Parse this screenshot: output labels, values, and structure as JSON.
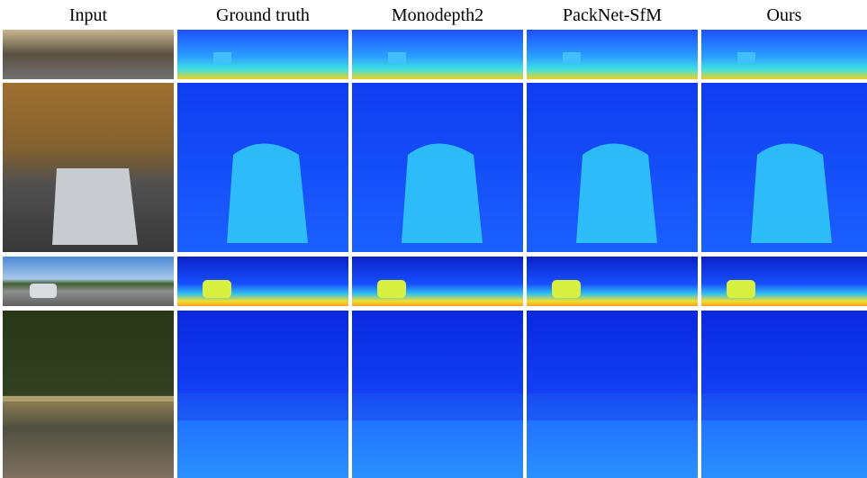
{
  "columns": [
    "Input",
    "Ground truth",
    "Monodepth2",
    "PackNet-SfM",
    "Ours"
  ]
}
